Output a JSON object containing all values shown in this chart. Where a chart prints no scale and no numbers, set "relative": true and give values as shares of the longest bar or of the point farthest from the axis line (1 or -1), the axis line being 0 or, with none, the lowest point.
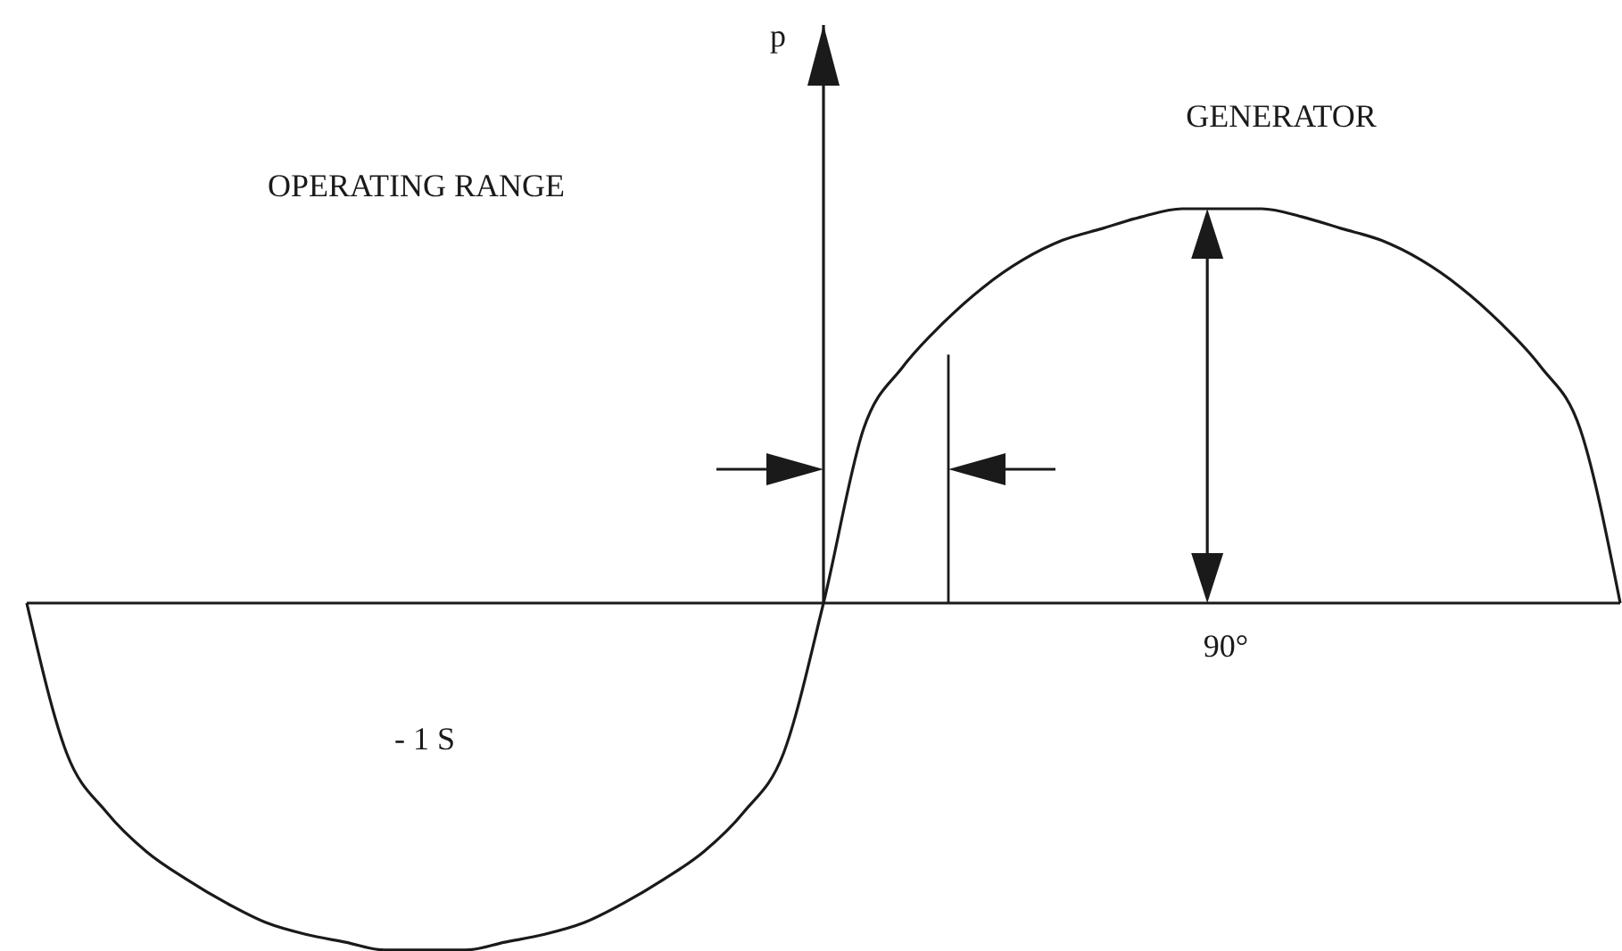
{
  "chart_data": {
    "type": "line",
    "relative": true,
    "ylabel": "p",
    "color": "#1a1a1a",
    "categories": [
      null,
      null,
      null,
      null,
      null,
      null,
      null,
      null,
      null,
      null,
      null,
      null,
      null,
      null,
      null,
      null,
      null,
      null,
      null,
      null,
      null,
      null,
      null,
      null,
      null,
      null,
      null,
      null,
      null,
      null,
      null,
      null,
      null,
      null,
      null,
      null,
      null,
      null,
      null,
      null,
      null
    ],
    "values": [
      0,
      -0.38,
      -0.53,
      -0.63,
      -0.7,
      -0.76,
      -0.81,
      -0.84,
      -0.86,
      -0.88,
      -0.88,
      -0.88,
      -0.86,
      -0.84,
      -0.81,
      -0.76,
      -0.7,
      -0.63,
      -0.53,
      -0.38,
      0,
      0.44,
      0.6,
      0.71,
      0.8,
      0.87,
      0.92,
      0.95,
      0.98,
      1,
      1,
      1,
      0.98,
      0.95,
      0.92,
      0.87,
      0.8,
      0.71,
      0.6,
      0.44,
      0
    ],
    "annotations": [
      "GENERATOR",
      "OPERATING RANGE",
      "90°",
      "- 1 S"
    ]
  }
}
